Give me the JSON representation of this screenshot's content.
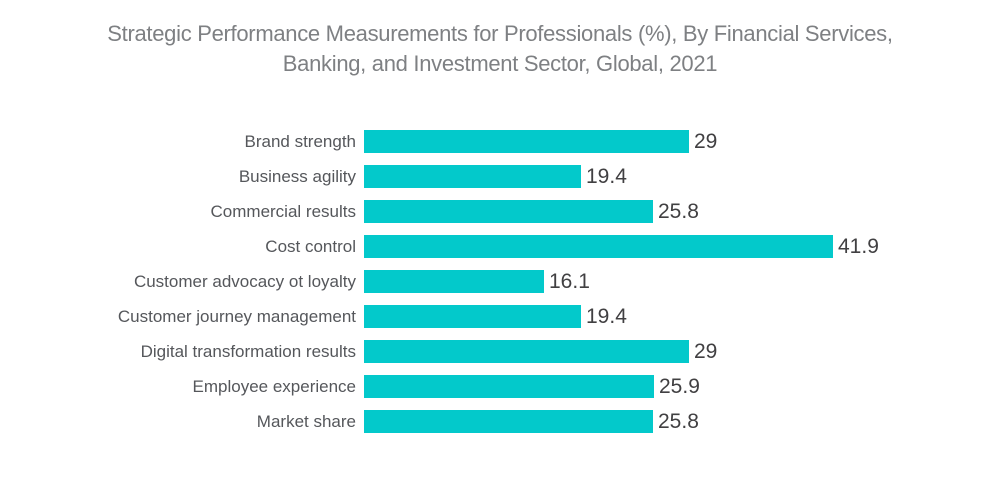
{
  "page": {
    "background_color": "#ffffff"
  },
  "chart": {
    "title_lines": [
      "Strategic Performance Measurements for Professionals (%), By Financial Services,",
      "Banking, and Investment Sector, Global, 2021"
    ],
    "title_color": "#7e8083",
    "bar_color": "#03c9cb",
    "category_label_color": "#55575b",
    "value_label_color": "#414042"
  },
  "chart_data": {
    "type": "bar",
    "orientation": "horizontal",
    "title": "Strategic Performance Measurements for Professionals (%), By Financial Services, Banking, and Investment Sector, Global, 2021",
    "categories": [
      "Brand strength",
      "Business agility",
      "Commercial results",
      "Cost control",
      "Customer advocacy ot loyalty",
      "Customer journey management",
      "Digital transformation results",
      "Employee experience",
      "Market share"
    ],
    "values": [
      29,
      19.4,
      25.8,
      41.9,
      16.1,
      19.4,
      29,
      25.9,
      25.8
    ],
    "value_labels": [
      "29",
      "19.4",
      "25.8",
      "41.9",
      "16.1",
      "19.4",
      "29",
      "25.9",
      "25.8"
    ],
    "xlabel": "",
    "ylabel": "",
    "xlim": [
      0,
      45
    ],
    "grid": false,
    "legend": false,
    "axes_visible": false,
    "data_labels": "end-of-bar"
  }
}
